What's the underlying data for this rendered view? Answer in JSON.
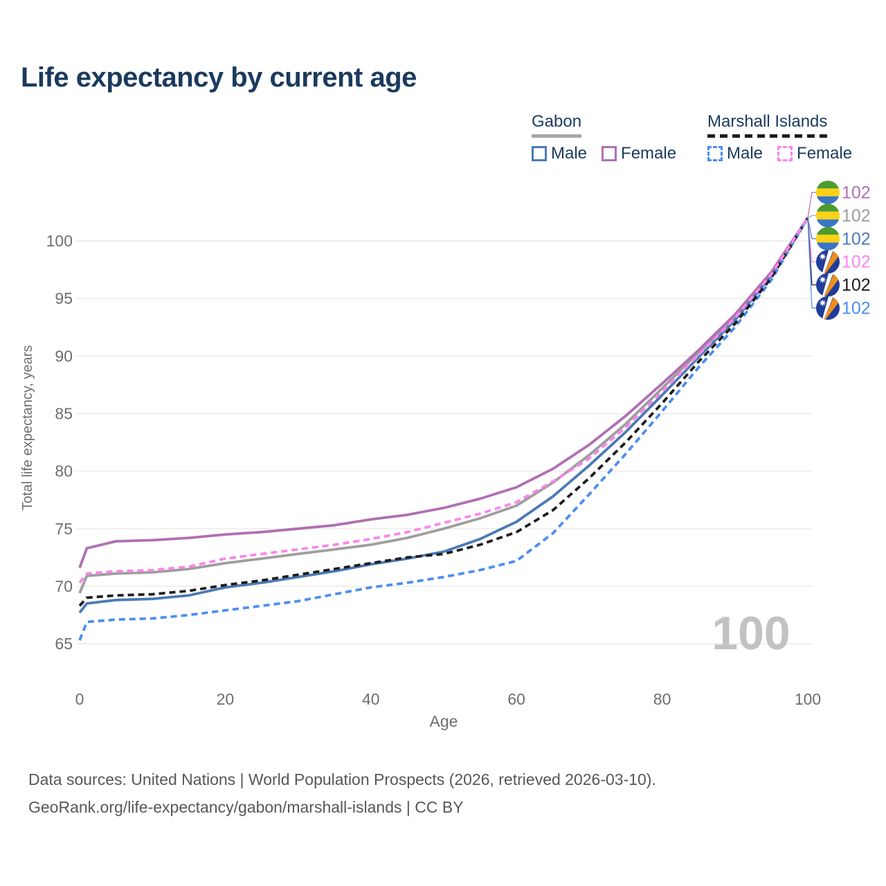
{
  "title": "Life expectancy by current age",
  "legend": {
    "groups": [
      {
        "country": "Gabon",
        "line_style": "solid",
        "line_color": "#a6a6a6",
        "items": [
          {
            "label": "Male",
            "color": "#4a7ab5",
            "dashed": false
          },
          {
            "label": "Female",
            "color": "#b06fb3",
            "dashed": false
          }
        ]
      },
      {
        "country": "Marshall Islands",
        "line_style": "dashed",
        "line_color": "#1d1d1d",
        "items": [
          {
            "label": "Male",
            "color": "#4b8ef2",
            "dashed": true
          },
          {
            "label": "Female",
            "color": "#fb85ec",
            "dashed": true
          }
        ]
      }
    ]
  },
  "chart_data": {
    "type": "line",
    "title": "Life expectancy by current age",
    "xlabel": "Age",
    "ylabel": "Total life expectancy, years",
    "xlim": [
      0,
      100
    ],
    "ylim": [
      65,
      102
    ],
    "x_ticks": [
      0,
      20,
      40,
      60,
      80,
      100
    ],
    "y_ticks": [
      65,
      70,
      75,
      80,
      85,
      90,
      95,
      100
    ],
    "grid": "horizontal",
    "legend_position": "top-right",
    "hover_age_watermark": "100",
    "x": [
      0,
      1,
      5,
      10,
      15,
      20,
      25,
      30,
      35,
      40,
      45,
      50,
      55,
      60,
      65,
      70,
      75,
      80,
      85,
      90,
      95,
      100
    ],
    "series": [
      {
        "name": "Gabon Female",
        "id": "gabon-female",
        "color": "#b06fb3",
        "dashed": false,
        "z": 3,
        "flag": "gabon",
        "end_label": "102",
        "values": [
          71.6,
          73.3,
          73.9,
          74.0,
          74.2,
          74.5,
          74.7,
          75.0,
          75.3,
          75.8,
          76.2,
          76.8,
          77.6,
          78.6,
          80.2,
          82.3,
          84.8,
          87.6,
          90.5,
          93.6,
          97.3,
          102
        ]
      },
      {
        "name": "Gabon Both sexes",
        "id": "gabon-all",
        "color": "#9e9e9e",
        "dashed": false,
        "z": 1,
        "flag": "gabon",
        "end_label": "102",
        "values": [
          69.4,
          70.9,
          71.1,
          71.2,
          71.5,
          72.0,
          72.4,
          72.8,
          73.2,
          73.6,
          74.2,
          75.0,
          75.9,
          77.0,
          79.0,
          81.4,
          84.1,
          87.2,
          90.3,
          93.4,
          97.2,
          102
        ]
      },
      {
        "name": "Gabon Male",
        "id": "gabon-male",
        "color": "#4a7ab5",
        "dashed": false,
        "z": 2,
        "flag": "gabon",
        "end_label": "102",
        "values": [
          67.7,
          68.5,
          68.8,
          68.9,
          69.2,
          69.9,
          70.3,
          70.8,
          71.3,
          71.9,
          72.4,
          73.0,
          74.1,
          75.6,
          77.8,
          80.5,
          83.4,
          86.6,
          89.9,
          93.1,
          97.0,
          102
        ]
      },
      {
        "name": "Marshall Islands Female",
        "id": "marshall-islands-female",
        "color": "#fb85ec",
        "dashed": true,
        "z": 6,
        "flag": "marshall-islands",
        "end_label": "102",
        "values": [
          70.3,
          71.1,
          71.3,
          71.4,
          71.7,
          72.4,
          72.8,
          73.2,
          73.6,
          74.1,
          74.7,
          75.5,
          76.3,
          77.3,
          79.1,
          81.1,
          83.8,
          86.9,
          90.1,
          93.3,
          97.1,
          102
        ]
      },
      {
        "name": "Marshall Islands Both sexes",
        "id": "marshall-islands-all",
        "color": "#1d1d1d",
        "dashed": true,
        "z": 5,
        "flag": "marshall-islands",
        "end_label": "102",
        "values": [
          68.3,
          69.0,
          69.2,
          69.3,
          69.6,
          70.1,
          70.5,
          71.0,
          71.5,
          72.0,
          72.5,
          72.8,
          73.6,
          74.7,
          76.6,
          79.4,
          82.5,
          85.9,
          89.5,
          92.8,
          96.8,
          102
        ]
      },
      {
        "name": "Marshall Islands Male",
        "id": "marshall-islands-male",
        "color": "#4b8ef2",
        "dashed": true,
        "z": 4,
        "flag": "marshall-islands",
        "end_label": "102",
        "values": [
          65.3,
          66.9,
          67.1,
          67.2,
          67.5,
          67.9,
          68.3,
          68.7,
          69.3,
          69.9,
          70.3,
          70.8,
          71.4,
          72.2,
          74.6,
          78.0,
          81.5,
          85.2,
          89.0,
          92.5,
          96.6,
          102
        ]
      }
    ],
    "flags": {
      "gabon": {
        "green": "#4d9b2f",
        "yellow": "#fcd116",
        "blue": "#3a75c4"
      },
      "marshall-islands": {
        "blue": "#1f3d99",
        "orange": "#ef8e1b",
        "white": "#ffffff"
      }
    }
  },
  "colors": {
    "title_text": "#1b3a5e",
    "axis_text": "#6e6e6e",
    "gridline": "#e9e9e9",
    "watermark": "#c2c2c2",
    "footer_text": "#575757"
  },
  "footer": {
    "line1": "Data sources: United Nations | World Population Prospects (2026, retrieved 2026-03-10).",
    "line2": "GeoRank.org/life-expectancy/gabon/marshall-islands | CC BY"
  }
}
